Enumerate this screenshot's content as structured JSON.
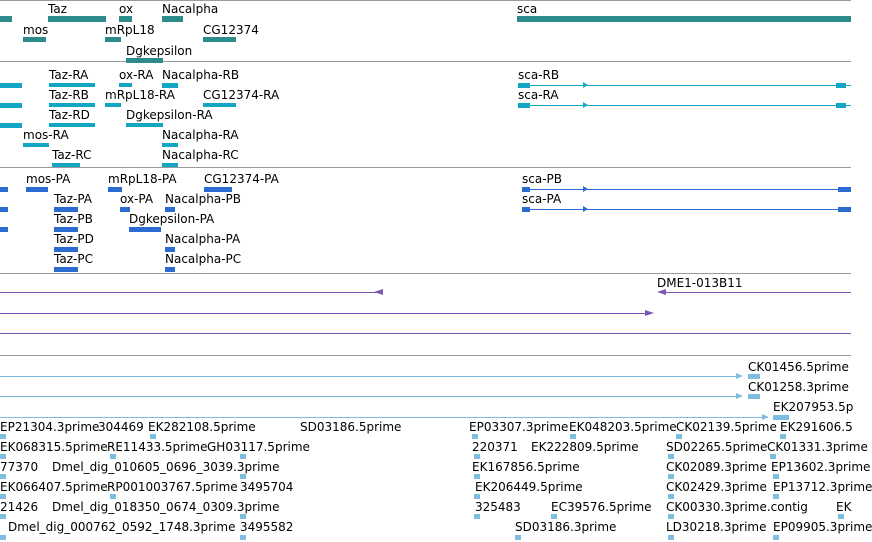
{
  "tracks": {
    "genes": [
      "Taz",
      "ox",
      "Nacalpha",
      "sca",
      "mos",
      "mRpL18",
      "CG12374",
      "Dgkepsilon"
    ],
    "transcripts": [
      "Taz-RA",
      "ox-RA",
      "Nacalpha-RB",
      "sca-RB",
      "Taz-RB",
      "mRpL18-RA",
      "CG12374-RA",
      "sca-RA",
      "Taz-RD",
      "Dgkepsilon-RA",
      "mos-RA",
      "Nacalpha-RA",
      "Taz-RC",
      "Nacalpha-RC"
    ],
    "proteins": [
      "mos-PA",
      "mRpL18-PA",
      "CG12374-PA",
      "sca-PB",
      "Taz-PA",
      "ox-PA",
      "Nacalpha-PB",
      "sca-PA",
      "Taz-PB",
      "Dgkepsilon-PA",
      "Taz-PD",
      "Nacalpha-PA",
      "Taz-PC",
      "Nacalpha-PC"
    ],
    "clones": [
      "DME1-013B11"
    ],
    "ests": [
      "CK01456.5prime",
      "CK01258.3prime",
      "EK207953.5p",
      "EP21304.3prime",
      "304469",
      "EK282108.5prime",
      "SD03186.5prime",
      "EP03307.3prime",
      "EK048203.5prime",
      "CK02139.5prime",
      "EK291606.5",
      "EK068315.5prime",
      "RE11433.5prime",
      "GH03117.5prime",
      "220371",
      "EK222809.5prime",
      "SD02265.5prime",
      "CK01331.3prime",
      "77370",
      "Dmel_dig_010605_0696_3039.3prime",
      "EK167856.5prime",
      "CK02089.3prime",
      "EP13602.3prime",
      "EK066407.5prime",
      "RP001003767.5prime",
      "3495704",
      "EK206449.5prime",
      "CK02429.3prime",
      "EP13712.3prime",
      "21426",
      "Dmel_dig_018350_0674_0309.3prime",
      "325483",
      "EC39576.5prime",
      "CK00330.3prime.contig",
      "EK",
      "Dmel_dig_000762_0592_1748.3prime",
      "3495582",
      "SD03186.3prime",
      "LD30218.3prime",
      "EP09905.3prime"
    ]
  },
  "colors": {
    "gene": "#2e8b8b",
    "transcript": "#12a6c4",
    "protein": "#2c6bd2",
    "clone": "#7b56b3",
    "est": "#7fbde0",
    "separator": "#9a9a9a"
  }
}
